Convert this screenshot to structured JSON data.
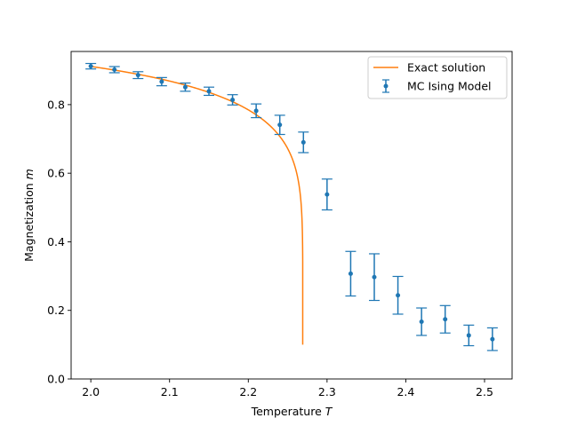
{
  "chart_data": {
    "type": "scatter",
    "title": "",
    "xlabel": "Temperature",
    "xlabel_symbol": "T",
    "ylabel": "Magnetization",
    "ylabel_symbol": "m",
    "xlim": [
      1.975,
      2.535
    ],
    "ylim": [
      0.0,
      0.955
    ],
    "x_ticks": [
      2.0,
      2.1,
      2.2,
      2.3,
      2.4,
      2.5
    ],
    "x_tick_labels": [
      "2.0",
      "2.1",
      "2.2",
      "2.3",
      "2.4",
      "2.5"
    ],
    "y_ticks": [
      0.0,
      0.2,
      0.4,
      0.6,
      0.8
    ],
    "y_tick_labels": [
      "0.0",
      "0.2",
      "0.4",
      "0.6",
      "0.8"
    ],
    "grid": false,
    "legend_position": "top-right",
    "series": [
      {
        "name": "Exact solution",
        "kind": "line",
        "color": "#ff7f0e",
        "x_start": 2.0,
        "x_end": 2.2691,
        "y_min_shown": 0.1
      },
      {
        "name": "MC Ising Model",
        "kind": "errorbar",
        "color": "#1f77b4",
        "x": [
          2.0,
          2.03,
          2.06,
          2.09,
          2.12,
          2.15,
          2.18,
          2.21,
          2.24,
          2.27,
          2.3,
          2.33,
          2.36,
          2.39,
          2.42,
          2.45,
          2.48,
          2.51
        ],
        "y": [
          0.912,
          0.902,
          0.886,
          0.867,
          0.851,
          0.839,
          0.814,
          0.782,
          0.741,
          0.69,
          0.538,
          0.307,
          0.297,
          0.244,
          0.167,
          0.174,
          0.127,
          0.116
        ],
        "yerr": [
          0.008,
          0.009,
          0.01,
          0.012,
          0.012,
          0.012,
          0.015,
          0.02,
          0.028,
          0.03,
          0.045,
          0.065,
          0.068,
          0.055,
          0.04,
          0.04,
          0.03,
          0.033
        ]
      }
    ]
  }
}
